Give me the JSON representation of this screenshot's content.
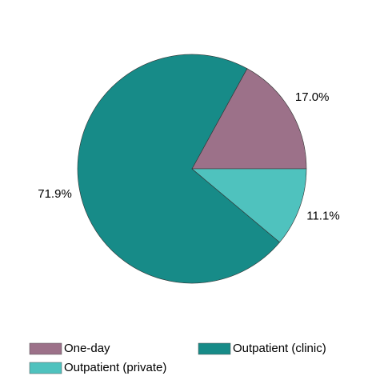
{
  "chart_data": {
    "type": "pie",
    "categories": [
      "One-day",
      "Outpatient (clinic)",
      "Outpatient (private)"
    ],
    "values": [
      17.0,
      71.9,
      11.1
    ],
    "value_labels": [
      "17.0%",
      "71.9%",
      "11.1%"
    ],
    "colors": [
      "#9c7189",
      "#178b88",
      "#4fc2be"
    ]
  }
}
